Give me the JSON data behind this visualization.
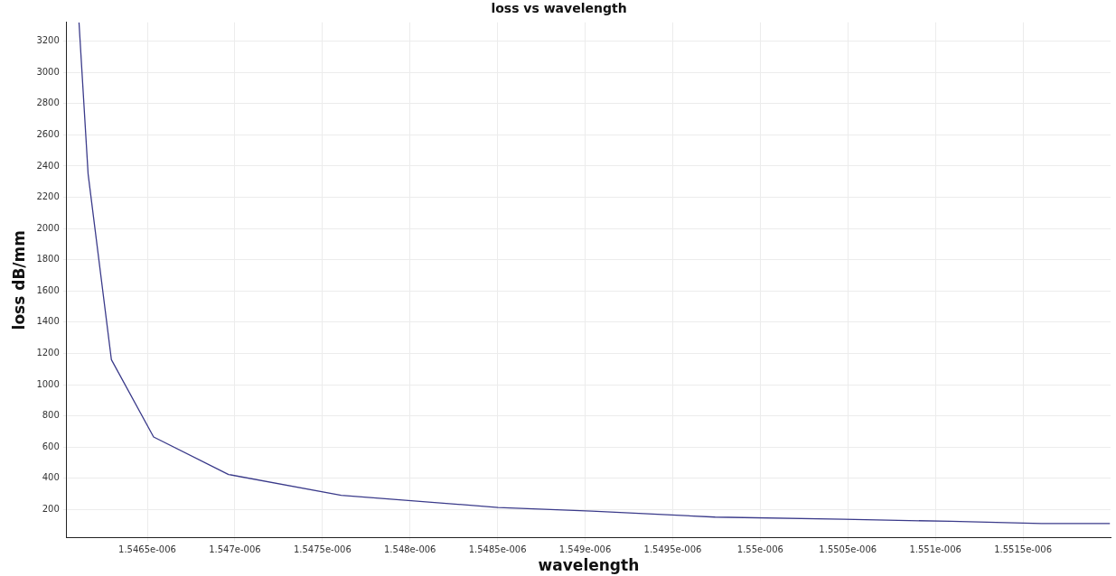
{
  "chart_data": {
    "type": "line",
    "title": "loss vs wavelength",
    "xlabel": "wavelength",
    "ylabel": "loss dB/mm",
    "x": [
      1.54611e-06,
      1.546162e-06,
      1.546295e-06,
      1.546536e-06,
      1.546964e-06,
      1.547607e-06,
      1.548503e-06,
      1.549038e-06,
      1.549742e-06,
      1.550476e-06,
      1.551087e-06,
      1.551607e-06,
      1.551996e-06
    ],
    "series": [
      {
        "color": "#3a3a8a",
        "values": [
          3320,
          2350,
          1160,
          665,
          425,
          292,
          214,
          190,
          152,
          138,
          125,
          111,
          111
        ]
      }
    ],
    "xlim": [
      1.54604e-06,
      1.552e-06
    ],
    "xticks": [
      {
        "value": 1.5465e-06,
        "label": "1.5465e-006"
      },
      {
        "value": 1.547e-06,
        "label": "1.547e-006"
      },
      {
        "value": 1.5475e-06,
        "label": "1.5475e-006"
      },
      {
        "value": 1.548e-06,
        "label": "1.548e-006"
      },
      {
        "value": 1.5485e-06,
        "label": "1.5485e-006"
      },
      {
        "value": 1.549e-06,
        "label": "1.549e-006"
      },
      {
        "value": 1.5495e-06,
        "label": "1.5495e-006"
      },
      {
        "value": 1.55e-06,
        "label": "1.55e-006"
      },
      {
        "value": 1.5505e-06,
        "label": "1.5505e-006"
      },
      {
        "value": 1.551e-06,
        "label": "1.551e-006"
      },
      {
        "value": 1.5515e-06,
        "label": "1.5515e-006"
      }
    ],
    "ylim": [
      20,
      3320
    ],
    "yticks": [
      200,
      400,
      600,
      800,
      1000,
      1200,
      1400,
      1600,
      1800,
      2000,
      2200,
      2400,
      2600,
      2800,
      3000,
      3200
    ],
    "grid": true,
    "legend": false,
    "marker": "none",
    "line_style": "solid"
  }
}
